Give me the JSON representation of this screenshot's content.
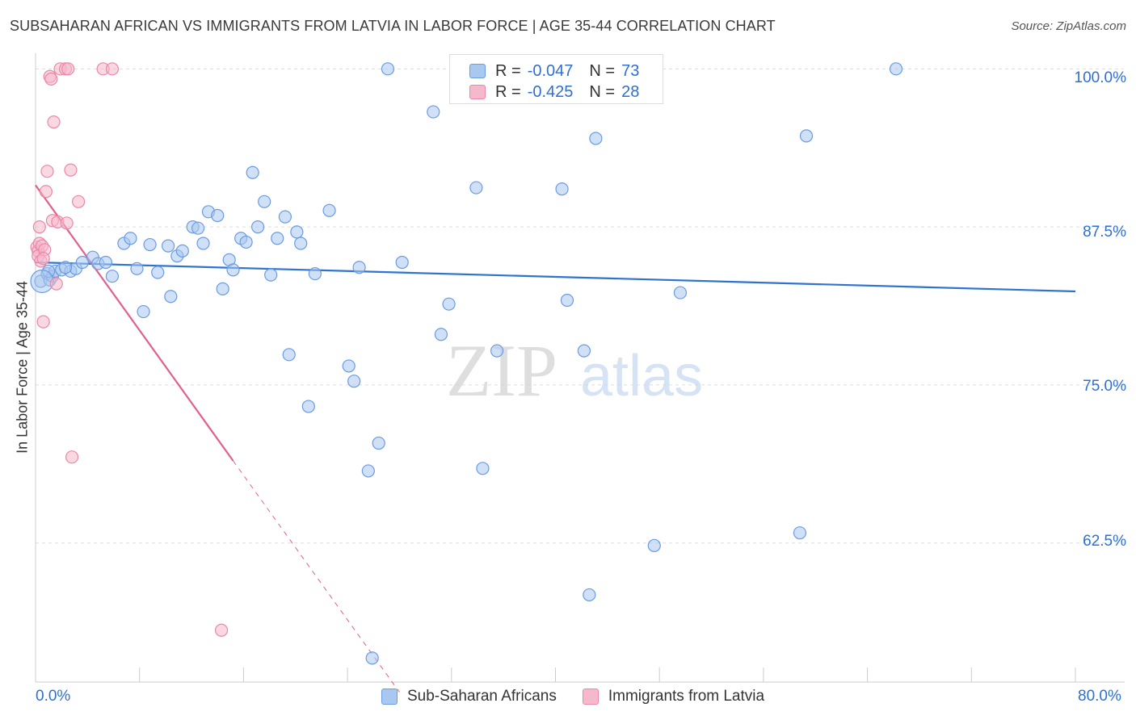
{
  "header": {
    "title": "SUBSAHARAN AFRICAN VS IMMIGRANTS FROM LATVIA IN LABOR FORCE | AGE 35-44 CORRELATION CHART",
    "source": "Source: ZipAtlas.com"
  },
  "watermark": {
    "zip": "ZIP",
    "atlas": "atlas"
  },
  "legend": {
    "series1": {
      "r_label": "R =",
      "r_value": "-0.047",
      "n_label": "N =",
      "n_value": "73",
      "name": "Sub-Saharan Africans"
    },
    "series2": {
      "r_label": "R =",
      "r_value": "-0.425",
      "n_label": "N =",
      "n_value": "28",
      "name": "Immigrants from Latvia"
    }
  },
  "colors": {
    "blue_fill": "#a9c8f0",
    "blue_stroke": "#6b9be0",
    "blue_line": "#2f73d2",
    "pink_fill": "#f6b8cb",
    "pink_stroke": "#ea88a8",
    "pink_line": "#e2608b",
    "axis_text": "#2f6fd0",
    "grid": "#dddddd"
  },
  "chart_data": {
    "type": "scatter",
    "title": "SUBSAHARAN AFRICAN VS IMMIGRANTS FROM LATVIA IN LABOR FORCE | AGE 35-44 CORRELATION CHART",
    "xlabel": "",
    "ylabel": "In Labor Force | Age 35-44",
    "xlim": [
      0,
      80
    ],
    "ylim": [
      51.5,
      102
    ],
    "x_tick_labels": [
      "0.0%",
      "80.0%"
    ],
    "y_ticks": [
      62.5,
      75.0,
      87.5,
      100.0
    ],
    "y_tick_labels": [
      "62.5%",
      "75.0%",
      "87.5%",
      "100.0%"
    ],
    "series": [
      {
        "name": "Sub-Saharan Africans",
        "points": [
          [
            0.4,
            83.2
          ],
          [
            0.9,
            83.8
          ],
          [
            1.1,
            83.3
          ],
          [
            1.3,
            83.6
          ],
          [
            1.5,
            84.0
          ],
          [
            2.0,
            84.1
          ],
          [
            2.7,
            84.0
          ],
          [
            3.1,
            84.2
          ],
          [
            4.4,
            85.1
          ],
          [
            4.8,
            84.6
          ],
          [
            5.4,
            84.7
          ],
          [
            5.9,
            83.6
          ],
          [
            6.8,
            86.2
          ],
          [
            7.3,
            86.6
          ],
          [
            7.8,
            84.2
          ],
          [
            8.3,
            80.8
          ],
          [
            8.8,
            86.1
          ],
          [
            9.4,
            83.9
          ],
          [
            10.2,
            86.0
          ],
          [
            10.4,
            82.0
          ],
          [
            10.9,
            85.2
          ],
          [
            11.3,
            85.6
          ],
          [
            12.1,
            87.5
          ],
          [
            12.5,
            87.4
          ],
          [
            12.9,
            86.2
          ],
          [
            13.3,
            88.7
          ],
          [
            14.0,
            88.4
          ],
          [
            14.4,
            82.6
          ],
          [
            14.9,
            84.9
          ],
          [
            15.2,
            84.1
          ],
          [
            15.8,
            86.6
          ],
          [
            16.2,
            86.3
          ],
          [
            16.7,
            91.8
          ],
          [
            17.1,
            87.5
          ],
          [
            17.6,
            89.5
          ],
          [
            18.1,
            83.7
          ],
          [
            18.6,
            86.6
          ],
          [
            19.2,
            88.3
          ],
          [
            19.5,
            77.4
          ],
          [
            20.1,
            87.1
          ],
          [
            20.4,
            86.2
          ],
          [
            21.0,
            73.3
          ],
          [
            21.5,
            83.8
          ],
          [
            22.6,
            88.8
          ],
          [
            24.1,
            76.5
          ],
          [
            24.5,
            75.3
          ],
          [
            24.9,
            84.3
          ],
          [
            25.6,
            68.2
          ],
          [
            26.4,
            70.4
          ],
          [
            27.1,
            100.0
          ],
          [
            28.2,
            84.7
          ],
          [
            30.6,
            96.6
          ],
          [
            31.2,
            79.0
          ],
          [
            31.8,
            81.4
          ],
          [
            32.8,
            100.0
          ],
          [
            33.9,
            90.6
          ],
          [
            34.4,
            68.4
          ],
          [
            35.5,
            77.7
          ],
          [
            37.8,
            100.0
          ],
          [
            40.5,
            90.5
          ],
          [
            40.9,
            81.7
          ],
          [
            42.2,
            77.7
          ],
          [
            42.6,
            58.4
          ],
          [
            43.1,
            94.5
          ],
          [
            47.6,
            62.3
          ],
          [
            49.6,
            82.3
          ],
          [
            58.8,
            63.3
          ],
          [
            59.3,
            94.7
          ],
          [
            66.2,
            100.0
          ],
          [
            25.9,
            53.4
          ],
          [
            1.0,
            84.0
          ],
          [
            2.3,
            84.3
          ],
          [
            3.6,
            84.7
          ]
        ]
      },
      {
        "name": "Immigrants from Latvia",
        "points": [
          [
            0.1,
            85.9
          ],
          [
            0.2,
            85.6
          ],
          [
            0.2,
            85.2
          ],
          [
            0.3,
            86.2
          ],
          [
            0.4,
            84.8
          ],
          [
            0.5,
            86.0
          ],
          [
            0.6,
            80.0
          ],
          [
            0.7,
            85.7
          ],
          [
            0.8,
            90.3
          ],
          [
            0.9,
            91.9
          ],
          [
            1.1,
            99.4
          ],
          [
            1.2,
            99.2
          ],
          [
            1.3,
            88.0
          ],
          [
            1.4,
            95.8
          ],
          [
            1.6,
            83.0
          ],
          [
            1.7,
            87.9
          ],
          [
            1.9,
            100.0
          ],
          [
            2.3,
            100.0
          ],
          [
            2.4,
            87.8
          ],
          [
            2.5,
            100.0
          ],
          [
            2.7,
            92.0
          ],
          [
            2.8,
            69.3
          ],
          [
            3.3,
            89.5
          ],
          [
            5.2,
            100.0
          ],
          [
            5.9,
            100.0
          ],
          [
            14.3,
            55.6
          ],
          [
            0.3,
            87.5
          ],
          [
            0.6,
            85.0
          ]
        ]
      }
    ],
    "trendlines": [
      {
        "series": "Sub-Saharan Africans",
        "x": [
          0.0,
          80.0
        ],
        "y": [
          84.7,
          82.4
        ],
        "style": "solid"
      },
      {
        "series": "Immigrants from Latvia",
        "x": [
          0.0,
          15.2
        ],
        "y": [
          90.8,
          69.0
        ],
        "style": "solid"
      },
      {
        "series": "Immigrants from Latvia",
        "x": [
          15.2,
          28.0
        ],
        "y": [
          69.0,
          50.7
        ],
        "style": "dashed"
      }
    ]
  }
}
